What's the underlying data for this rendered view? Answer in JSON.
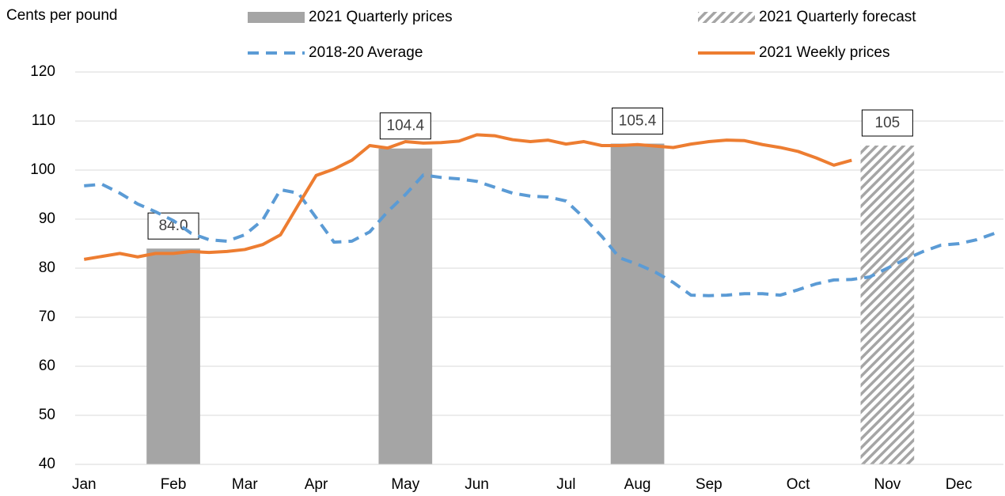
{
  "chart_data": {
    "type": "combo",
    "y_label": "Cents per pound",
    "categories": [
      "Jan",
      null,
      null,
      null,
      null,
      "Feb",
      null,
      null,
      null,
      "Mar",
      null,
      null,
      null,
      "Apr",
      null,
      null,
      null,
      null,
      "May",
      null,
      null,
      null,
      "Jun",
      null,
      null,
      null,
      null,
      "Jul",
      null,
      null,
      null,
      "Aug",
      null,
      null,
      null,
      "Sep",
      null,
      null,
      null,
      null,
      "Oct",
      null,
      null,
      null,
      null,
      "Nov",
      null,
      null,
      null,
      "Dec",
      null,
      null
    ],
    "series": [
      {
        "name": "2021 Quarterly prices",
        "type": "bar",
        "color": "#a5a5a5",
        "values": [
          null,
          null,
          null,
          null,
          null,
          84.0,
          null,
          null,
          null,
          null,
          null,
          null,
          null,
          null,
          null,
          null,
          null,
          null,
          104.4,
          null,
          null,
          null,
          null,
          null,
          null,
          null,
          null,
          null,
          null,
          null,
          null,
          105.4,
          null,
          null,
          null,
          null,
          null,
          null,
          null,
          null,
          null,
          null,
          null,
          null,
          null,
          null,
          null,
          null,
          null,
          null,
          null,
          null
        ],
        "value_labels": [
          null,
          null,
          null,
          null,
          null,
          "84.0",
          null,
          null,
          null,
          null,
          null,
          null,
          null,
          null,
          null,
          null,
          null,
          null,
          "104.4",
          null,
          null,
          null,
          null,
          null,
          null,
          null,
          null,
          null,
          null,
          null,
          null,
          "105.4",
          null,
          null,
          null,
          null,
          null,
          null,
          null,
          null,
          null,
          null,
          null,
          null,
          null,
          null,
          null,
          null,
          null,
          null,
          null,
          null
        ]
      },
      {
        "name": "2021 Quarterly forecast",
        "type": "bar",
        "pattern": "hatch",
        "color": "#a5a5a5",
        "values": [
          null,
          null,
          null,
          null,
          null,
          null,
          null,
          null,
          null,
          null,
          null,
          null,
          null,
          null,
          null,
          null,
          null,
          null,
          null,
          null,
          null,
          null,
          null,
          null,
          null,
          null,
          null,
          null,
          null,
          null,
          null,
          null,
          null,
          null,
          null,
          null,
          null,
          null,
          null,
          null,
          null,
          null,
          null,
          null,
          null,
          105,
          null,
          null,
          null,
          null,
          null,
          null
        ]
      },
      {
        "name": "2018-20 Average",
        "type": "line",
        "dash": true,
        "color": "#5b9bd5",
        "values": [
          96.8,
          97.1,
          95.3,
          93.1,
          91.5,
          89.7,
          87.1,
          85.8,
          85.5,
          86.8,
          89.8,
          96.0,
          95.3,
          90.3,
          85.3,
          85.5,
          87.4,
          91.5,
          95.0,
          99.0,
          98.5,
          98.2,
          97.7,
          96.5,
          95.3,
          94.7,
          94.5,
          93.7,
          90.3,
          86.5,
          82.1,
          80.8,
          79.2,
          77.1,
          74.5,
          74.4,
          74.5,
          74.8,
          74.8,
          74.5,
          75.6,
          76.8,
          77.6,
          77.7,
          78.2,
          80.0,
          81.8,
          83.4,
          84.7,
          85.0,
          85.8,
          87.1
        ]
      },
      {
        "name": "2021 Weekly prices",
        "type": "line",
        "dash": false,
        "color": "#ed7d31",
        "values": [
          81.8,
          82.4,
          83.0,
          82.3,
          83.0,
          83.0,
          83.4,
          83.2,
          83.4,
          83.8,
          84.8,
          86.8,
          92.9,
          98.9,
          100.2,
          102.0,
          105.0,
          104.5,
          105.8,
          105.5,
          105.6,
          105.9,
          107.2,
          107.0,
          106.2,
          105.8,
          106.1,
          105.3,
          105.8,
          105.0,
          105.0,
          105.2,
          104.9,
          104.6,
          105.3,
          105.8,
          106.1,
          106.0,
          105.2,
          104.6,
          103.8,
          102.5,
          101.0,
          102.0,
          null,
          null,
          null,
          null,
          null,
          null,
          null,
          null
        ]
      }
    ],
    "ylim": [
      40,
      120
    ],
    "yticks": [
      40,
      50,
      60,
      70,
      80,
      90,
      100,
      110,
      120
    ],
    "grid": true
  }
}
